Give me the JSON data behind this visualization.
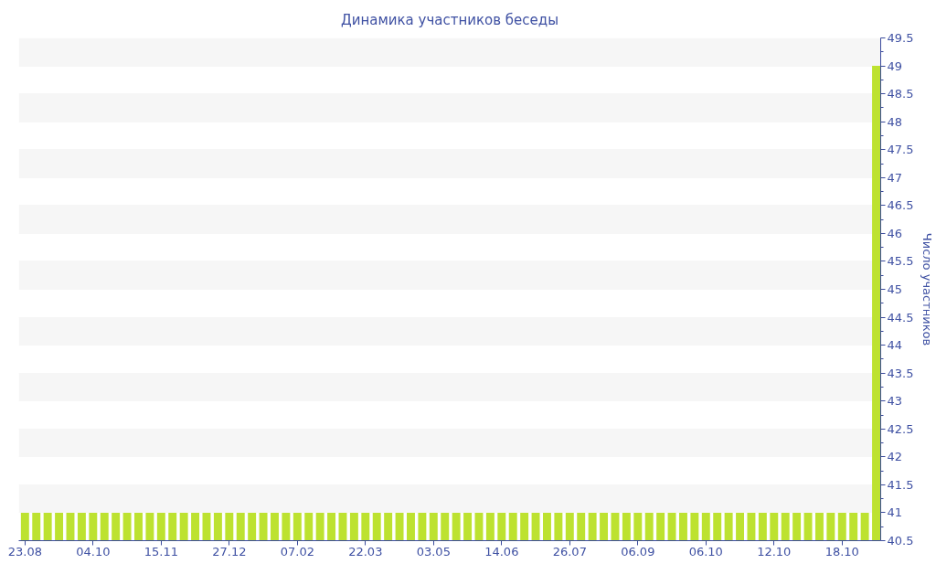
{
  "chart_data": {
    "type": "bar",
    "title": "Динамика участников беседы",
    "ylabel": "Число участников",
    "categories": [
      "23.08",
      null,
      null,
      null,
      null,
      null,
      "04.10",
      null,
      null,
      null,
      null,
      null,
      "15.11",
      null,
      null,
      null,
      null,
      null,
      "27.12",
      null,
      null,
      null,
      null,
      null,
      "07.02",
      null,
      null,
      null,
      null,
      null,
      "22.03",
      null,
      null,
      null,
      null,
      null,
      "03.05",
      null,
      null,
      null,
      null,
      null,
      "14.06",
      null,
      null,
      null,
      null,
      null,
      "26.07",
      null,
      null,
      null,
      null,
      null,
      "06.09",
      null,
      null,
      null,
      null,
      null,
      "06.10",
      null,
      null,
      null,
      null,
      null,
      "12.10",
      null,
      null,
      null,
      null,
      null,
      "18.10",
      null,
      null,
      null
    ],
    "values": [
      41,
      41,
      41,
      41,
      41,
      41,
      41,
      41,
      41,
      41,
      41,
      41,
      41,
      41,
      41,
      41,
      41,
      41,
      41,
      41,
      41,
      41,
      41,
      41,
      41,
      41,
      41,
      41,
      41,
      41,
      41,
      41,
      41,
      41,
      41,
      41,
      41,
      41,
      41,
      41,
      41,
      41,
      41,
      41,
      41,
      41,
      41,
      41,
      41,
      41,
      41,
      41,
      41,
      41,
      41,
      41,
      41,
      41,
      41,
      41,
      41,
      41,
      41,
      41,
      41,
      41,
      41,
      41,
      41,
      41,
      41,
      41,
      41,
      41,
      41,
      49
    ],
    "color": "#bde230",
    "ylim": [
      40.5,
      49.5
    ],
    "yticks": [
      40.5,
      {
        "value": 40.75,
        "label": null
      },
      41,
      {
        "value": 41.25,
        "label": null
      },
      41.5,
      {
        "value": 41.75,
        "label": null
      },
      42,
      {
        "value": 42.25,
        "label": null
      },
      42.5,
      {
        "value": 42.75,
        "label": null
      },
      43,
      {
        "value": 43.25,
        "label": null
      },
      43.5,
      {
        "value": 43.75,
        "label": null
      },
      44,
      {
        "value": 44.25,
        "label": null
      },
      44.5,
      {
        "value": 44.75,
        "label": null
      },
      45,
      {
        "value": 45.25,
        "label": null
      },
      45.5,
      {
        "value": 45.75,
        "label": null
      },
      46,
      {
        "value": 46.25,
        "label": null
      },
      46.5,
      {
        "value": 46.75,
        "label": null
      },
      47,
      {
        "value": 47.25,
        "label": null
      },
      47.5,
      {
        "value": 47.75,
        "label": null
      },
      48,
      {
        "value": 48.25,
        "label": null
      },
      48.5,
      {
        "value": 48.75,
        "label": null
      },
      49,
      {
        "value": 49.25,
        "label": null
      },
      49.5
    ],
    "grid": "y"
  }
}
